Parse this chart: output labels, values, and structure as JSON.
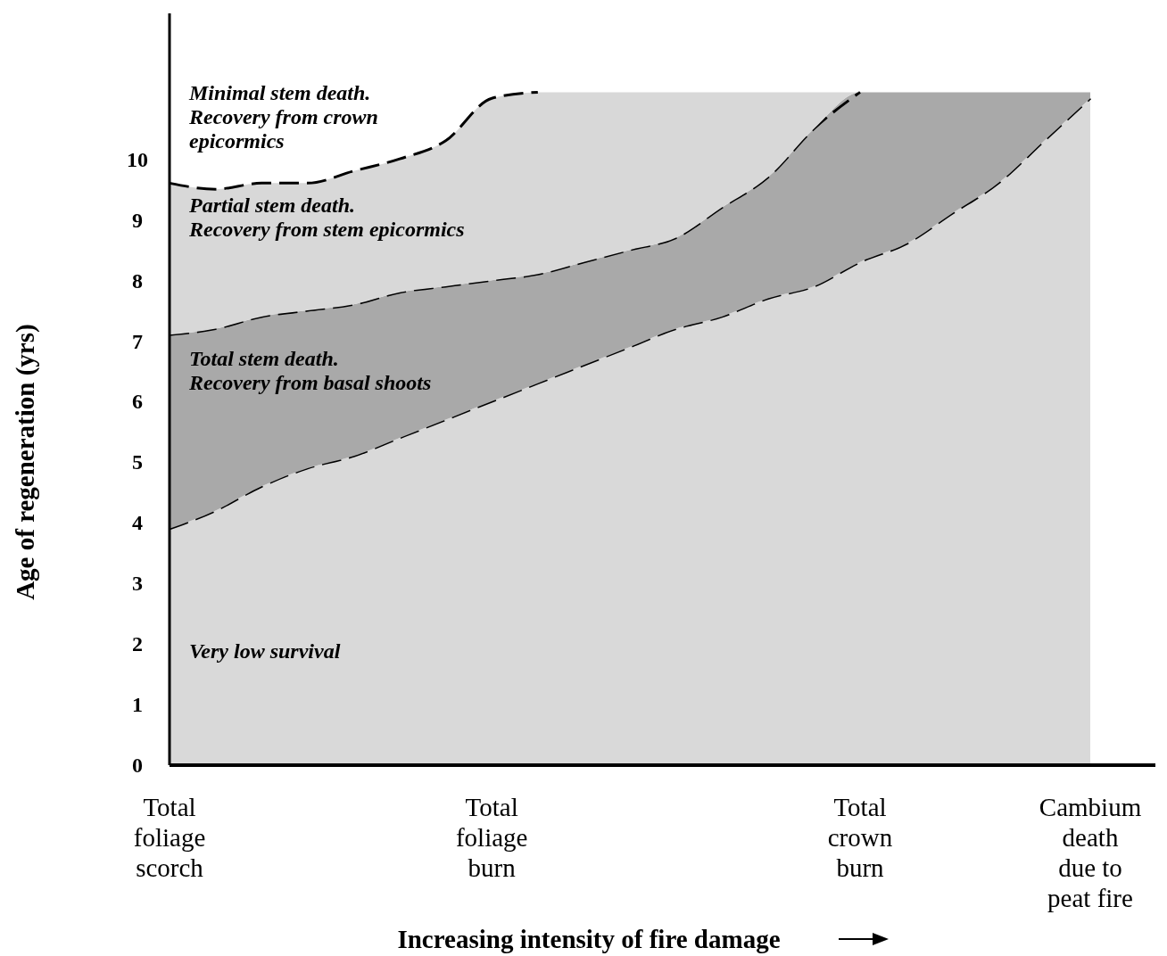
{
  "chart_data": {
    "type": "area",
    "xlabel": "Increasing intensity of fire damage",
    "ylabel": "Age of regeneration (yrs)",
    "categories": [
      "Total\nfoliage\nscorch",
      null,
      null,
      null,
      null,
      null,
      null,
      "Total\nfoliage\nburn",
      null,
      null,
      null,
      null,
      null,
      null,
      null,
      "Total\ncrown\nburn",
      null,
      null,
      null,
      null,
      "Cambium\ndeath\ndue to\npeat fire"
    ],
    "ylim": [
      0,
      12.4
    ],
    "yticks": [
      0,
      1,
      2,
      3,
      4,
      5,
      6,
      7,
      8,
      9,
      10
    ],
    "line_style": "dashed",
    "stacked": true,
    "series": [
      {
        "color": "#d9d9d9",
        "values": [
          3.9,
          4.2,
          4.6,
          4.9,
          5.1,
          5.4,
          5.7,
          6.0,
          6.3,
          6.6,
          6.9,
          7.2,
          7.4,
          7.7,
          7.9,
          8.3,
          8.6,
          9.1,
          9.6,
          10.3,
          11.0
        ]
      },
      {
        "color": "#a9a9a9",
        "values": [
          3.2,
          3.0,
          2.8,
          2.6,
          2.5,
          2.4,
          2.2,
          2.0,
          1.8,
          1.7,
          1.6,
          1.5,
          1.8,
          2.0,
          2.6,
          2.8,
          2.5,
          2.0,
          1.5,
          0.8,
          0.1
        ]
      },
      {
        "color": "#d8d8d8",
        "values": [
          2.5,
          2.3,
          2.2,
          2.1,
          2.2,
          2.2,
          2.4,
          3.0,
          3.0,
          2.8,
          2.6,
          2.4,
          1.9,
          1.4,
          0.6,
          0,
          0,
          0,
          0,
          0,
          0
        ]
      }
    ],
    "annotations": [
      "Minimal stem death.\nRecovery from crown\nepicormics",
      "Partial stem death.\nRecovery from stem epicormics",
      "Total stem death.\nRecovery from basal shoots",
      "Very low survival"
    ]
  }
}
